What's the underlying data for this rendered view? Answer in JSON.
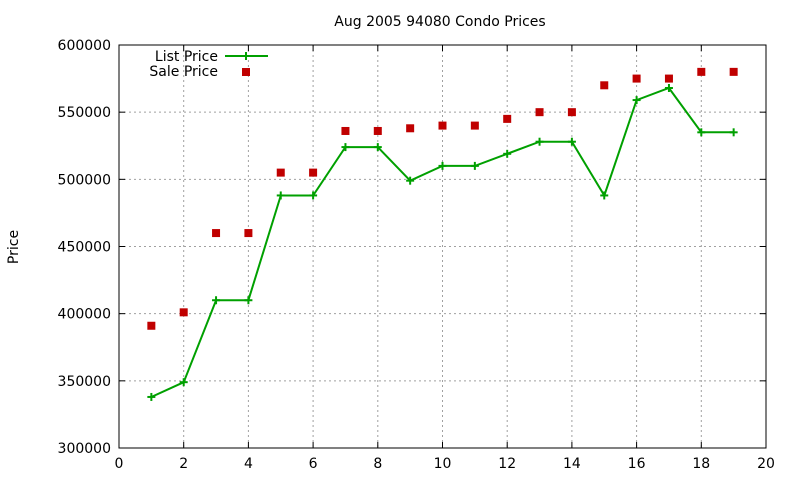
{
  "chart_data": {
    "type": "line",
    "title": "Aug 2005 94080 Condo Prices",
    "xlabel": "",
    "ylabel": "Price",
    "xlim": [
      0,
      20
    ],
    "ylim": [
      300000,
      600000
    ],
    "xticks": [
      0,
      2,
      4,
      6,
      8,
      10,
      12,
      14,
      16,
      18,
      20
    ],
    "yticks": [
      300000,
      350000,
      400000,
      450000,
      500000,
      550000,
      600000
    ],
    "grid": true,
    "legend": "top-left",
    "series": [
      {
        "name": "List Price",
        "style": "line-with-plus-markers",
        "color": "#00a000",
        "x": [
          1,
          2,
          3,
          4,
          5,
          6,
          7,
          8,
          9,
          10,
          11,
          12,
          13,
          14,
          15,
          16,
          17,
          18,
          19
        ],
        "y": [
          338000,
          349000,
          410000,
          410000,
          488000,
          488000,
          524000,
          524000,
          499000,
          510000,
          510000,
          519000,
          528000,
          528000,
          488000,
          559000,
          568000,
          535000,
          535000
        ]
      },
      {
        "name": "Sale Price",
        "style": "square-points",
        "color": "#c00000",
        "x": [
          1,
          2,
          3,
          4,
          5,
          6,
          7,
          8,
          9,
          10,
          11,
          12,
          13,
          14,
          15,
          16,
          17,
          18,
          19
        ],
        "y": [
          391000,
          401000,
          460000,
          460000,
          505000,
          505000,
          536000,
          536000,
          538000,
          540000,
          540000,
          545000,
          550000,
          550000,
          570000,
          575000,
          575000,
          580000,
          580000
        ]
      }
    ]
  }
}
